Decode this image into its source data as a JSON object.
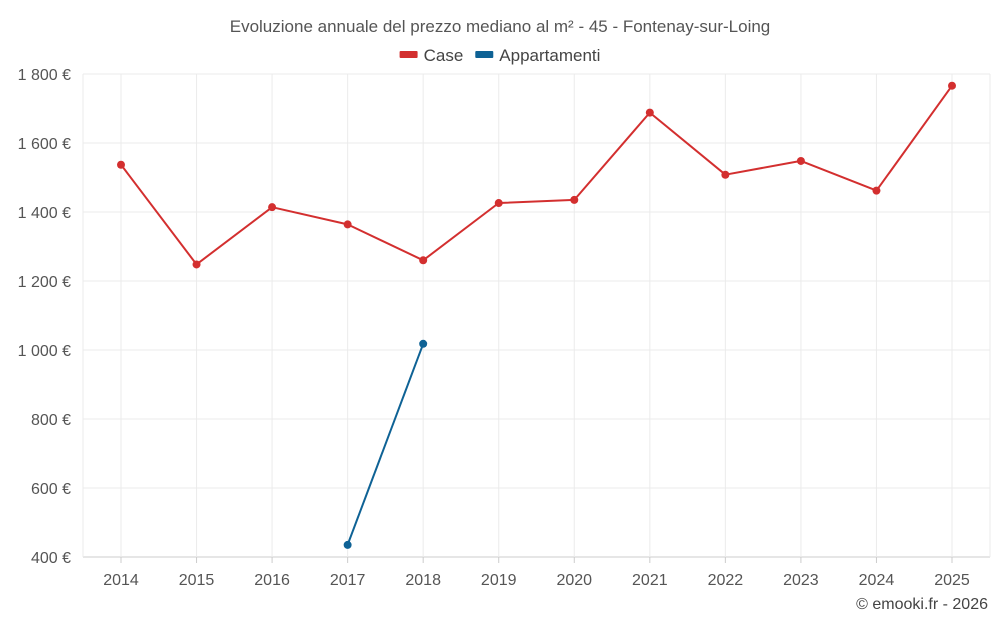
{
  "chart_data": {
    "type": "line",
    "title": "Evoluzione annuale del prezzo mediano al m² - 45 - Fontenay-sur-Loing",
    "categories": [
      "2014",
      "2015",
      "2016",
      "2017",
      "2018",
      "2019",
      "2020",
      "2021",
      "2022",
      "2023",
      "2024",
      "2025"
    ],
    "series": [
      {
        "name": "Case",
        "color": "#d32f2f",
        "values": [
          1537,
          1248,
          1414,
          1364,
          1260,
          1426,
          1435,
          1688,
          1508,
          1548,
          1462,
          1766
        ]
      },
      {
        "name": "Appartamenti",
        "color": "#0e6295",
        "values": [
          null,
          null,
          null,
          435,
          1018,
          null,
          null,
          null,
          null,
          null,
          null,
          null
        ]
      }
    ],
    "ylim": [
      400,
      1800
    ],
    "yticks": [
      400,
      600,
      800,
      1000,
      1200,
      1400,
      1600,
      1800
    ],
    "ytick_labels": [
      "400 €",
      "600 €",
      "800 €",
      "1 000 €",
      "1 200 €",
      "1 400 €",
      "1 600 €",
      "1 800 €"
    ],
    "xlabel": "",
    "ylabel": "",
    "grid": true,
    "legend_position": "top-center"
  },
  "credit": "© emooki.fr - 2026"
}
